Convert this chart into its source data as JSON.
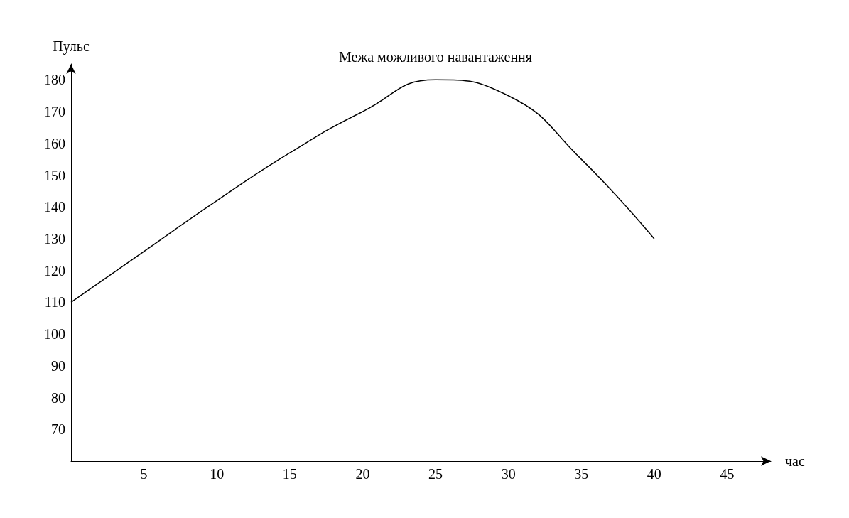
{
  "chart_data": {
    "type": "line",
    "xlabel": "час",
    "ylabel": "Пульс",
    "x": [
      0,
      5,
      10,
      15,
      20,
      25,
      30,
      35,
      40
    ],
    "series": [
      {
        "color": "#000000",
        "values": [
          110,
          126,
          142,
          157,
          170,
          180,
          175,
          155,
          130
        ]
      }
    ],
    "xlim": [
      0,
      48
    ],
    "xticks": [
      5,
      10,
      15,
      20,
      25,
      30,
      35,
      40,
      45
    ],
    "ylim": [
      60,
      185
    ],
    "yticks": [
      70,
      80,
      90,
      100,
      110,
      120,
      130,
      140,
      150,
      160,
      170,
      180
    ],
    "annotations": [
      {
        "text": "Межа можливого навантаження",
        "x": 25,
        "y": 180
      }
    ],
    "grid": false,
    "marker": "none",
    "line_style": "solid"
  }
}
